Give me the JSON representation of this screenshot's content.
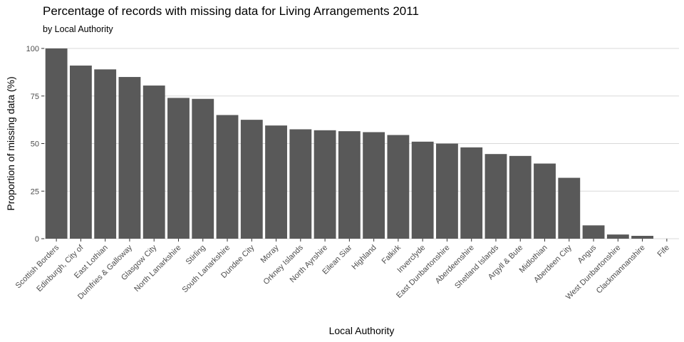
{
  "chart_data": {
    "type": "bar",
    "title": "Percentage of records with missing data for Living Arrangements 2011",
    "subtitle": "by Local Authority",
    "xlabel": "Local Authority",
    "ylabel": "Proportion of missing data (%)",
    "ylim": [
      0,
      100
    ],
    "yticks": [
      0,
      25,
      50,
      75,
      100
    ],
    "grid": "horizontal",
    "bar_color": "#595959",
    "categories": [
      "Scottish Borders",
      "Edinburgh, City of",
      "East Lothian",
      "Dumfries & Galloway",
      "Glasgow City",
      "North Lanarkshire",
      "Stirling",
      "South Lanarkshire",
      "Dundee City",
      "Moray",
      "Orkney Islands",
      "North Ayrshire",
      "Eilean Siar",
      "Highland",
      "Falkirk",
      "Inverclyde",
      "East Dunbartonshire",
      "Aberdeenshire",
      "Shetland Islands",
      "Argyll & Bute",
      "Midlothian",
      "Aberdeen City",
      "Angus",
      "West Dunbartonshire",
      "Clackmannanshire",
      "Fife"
    ],
    "values": [
      100,
      91,
      89,
      85,
      80.5,
      74,
      73.5,
      65,
      62.5,
      59.5,
      57.5,
      57,
      56.5,
      56,
      54.5,
      51,
      50,
      48,
      44.5,
      43.5,
      39.5,
      32,
      7,
      2.2,
      1.5,
      0
    ]
  }
}
